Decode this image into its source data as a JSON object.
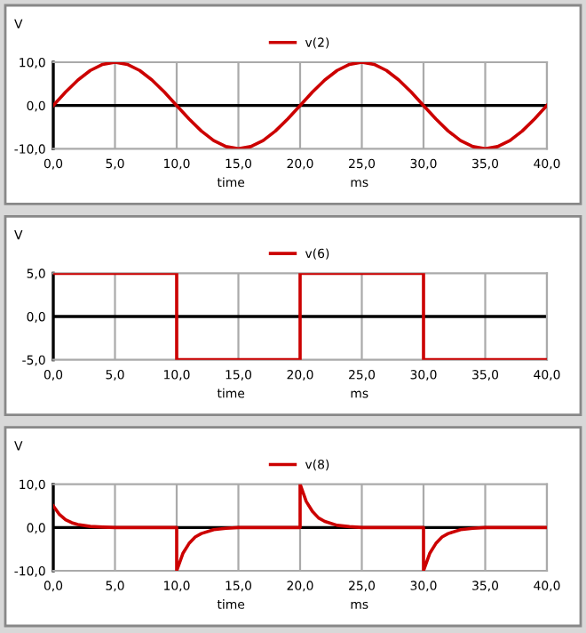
{
  "chart_data": [
    {
      "type": "line",
      "ylabel": "V",
      "xlabel": "time",
      "annotations": [
        "ms"
      ],
      "legend": "top",
      "grid": "x",
      "xlim": [
        0,
        40
      ],
      "ylim": [
        -10,
        10
      ],
      "xticks": [
        {
          "value": 0,
          "label": "0,0"
        },
        {
          "value": 5,
          "label": "5,0"
        },
        {
          "value": 10,
          "label": "10,0"
        },
        {
          "value": 15,
          "label": "15,0"
        },
        {
          "value": 20,
          "label": "20,0"
        },
        {
          "value": 25,
          "label": "25,0"
        },
        {
          "value": 30,
          "label": "30,0"
        },
        {
          "value": 35,
          "label": "35,0"
        },
        {
          "value": 40,
          "label": "40,0"
        }
      ],
      "yticks": [
        {
          "value": -10,
          "label": "-10,0"
        },
        {
          "value": 0,
          "label": "0,0"
        },
        {
          "value": 10,
          "label": "10,0"
        }
      ],
      "ref_lines": [
        {
          "axis": "y",
          "value": 0,
          "color": "#000000"
        }
      ],
      "series": [
        {
          "name": "v(2)",
          "color": "#cc0000",
          "x": [
            0,
            1,
            2,
            3,
            4,
            5,
            6,
            7,
            8,
            9,
            10,
            11,
            12,
            13,
            14,
            15,
            16,
            17,
            18,
            19,
            20,
            21,
            22,
            23,
            24,
            25,
            26,
            27,
            28,
            29,
            30,
            31,
            32,
            33,
            34,
            35,
            36,
            37,
            38,
            39,
            40
          ],
          "values": [
            0,
            3.1,
            5.9,
            8.1,
            9.5,
            10,
            9.5,
            8.1,
            5.9,
            3.1,
            0,
            -3.1,
            -5.9,
            -8.1,
            -9.5,
            -10,
            -9.5,
            -8.1,
            -5.9,
            -3.1,
            0,
            3.1,
            5.9,
            8.1,
            9.5,
            10,
            9.5,
            8.1,
            5.9,
            3.1,
            0,
            -3.1,
            -5.9,
            -8.1,
            -9.5,
            -10,
            -9.5,
            -8.1,
            -5.9,
            -3.1,
            0
          ]
        }
      ]
    },
    {
      "type": "line",
      "ylabel": "V",
      "xlabel": "time",
      "annotations": [
        "ms"
      ],
      "legend": "top",
      "grid": "x",
      "xlim": [
        0,
        40
      ],
      "ylim": [
        -5,
        5
      ],
      "xticks": [
        {
          "value": 0,
          "label": "0,0"
        },
        {
          "value": 5,
          "label": "5,0"
        },
        {
          "value": 10,
          "label": "10,0"
        },
        {
          "value": 15,
          "label": "15,0"
        },
        {
          "value": 20,
          "label": "20,0"
        },
        {
          "value": 25,
          "label": "25,0"
        },
        {
          "value": 30,
          "label": "30,0"
        },
        {
          "value": 35,
          "label": "35,0"
        },
        {
          "value": 40,
          "label": "40,0"
        }
      ],
      "yticks": [
        {
          "value": -5,
          "label": "-5,0"
        },
        {
          "value": 0,
          "label": "0,0"
        },
        {
          "value": 5,
          "label": "5,0"
        }
      ],
      "ref_lines": [
        {
          "axis": "y",
          "value": 0,
          "color": "#000000"
        }
      ],
      "series": [
        {
          "name": "v(6)",
          "color": "#cc0000",
          "x": [
            0,
            10,
            10,
            20,
            20,
            30,
            30,
            40
          ],
          "values": [
            5,
            5,
            -5,
            -5,
            5,
            5,
            -5,
            -5
          ]
        }
      ]
    },
    {
      "type": "line",
      "ylabel": "V",
      "xlabel": "time",
      "annotations": [
        "ms"
      ],
      "legend": "top",
      "grid": "x",
      "xlim": [
        0,
        40
      ],
      "ylim": [
        -10,
        10
      ],
      "xticks": [
        {
          "value": 0,
          "label": "0,0"
        },
        {
          "value": 5,
          "label": "5,0"
        },
        {
          "value": 10,
          "label": "10,0"
        },
        {
          "value": 15,
          "label": "15,0"
        },
        {
          "value": 20,
          "label": "20,0"
        },
        {
          "value": 25,
          "label": "25,0"
        },
        {
          "value": 30,
          "label": "30,0"
        },
        {
          "value": 35,
          "label": "35,0"
        },
        {
          "value": 40,
          "label": "40,0"
        }
      ],
      "yticks": [
        {
          "value": -10,
          "label": "-10,0"
        },
        {
          "value": 0,
          "label": "0,0"
        },
        {
          "value": 10,
          "label": "10,0"
        }
      ],
      "ref_lines": [
        {
          "axis": "y",
          "value": 0,
          "color": "#000000"
        }
      ],
      "series": [
        {
          "name": "v(8)",
          "color": "#cc0000",
          "x": [
            0,
            0.5,
            1,
            1.5,
            2,
            3,
            4,
            5,
            10,
            10,
            10.5,
            11,
            11.5,
            12,
            13,
            14,
            15,
            20,
            20,
            20.5,
            21,
            21.5,
            22,
            23,
            24,
            25,
            30,
            30,
            30.5,
            31,
            31.5,
            32,
            33,
            34,
            35,
            40
          ],
          "values": [
            5,
            3,
            1.8,
            1.1,
            0.7,
            0.25,
            0.1,
            0,
            0,
            -10,
            -6,
            -3.7,
            -2.2,
            -1.4,
            -0.5,
            -0.2,
            0,
            0,
            10,
            6,
            3.7,
            2.2,
            1.4,
            0.5,
            0.2,
            0,
            0,
            -10,
            -6,
            -3.7,
            -2.2,
            -1.4,
            -0.5,
            -0.2,
            0,
            0
          ]
        }
      ]
    }
  ]
}
